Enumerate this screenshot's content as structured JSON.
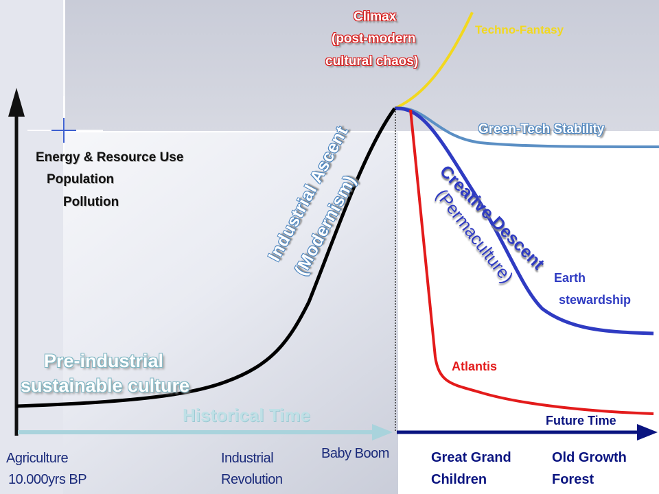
{
  "colors": {
    "industrial_curve": "#000000",
    "techno_fantasy": "#f2d81f",
    "green_tech": "#5b8fc4",
    "creative_descent": "#2f3bc2",
    "atlantis": "#e31b1b",
    "historical_axis": "#a9d3dc",
    "future_axis": "#0a1480"
  },
  "y_axis_labels": [
    "Energy & Resource Use",
    "Population",
    "Pollution"
  ],
  "phase_labels": {
    "climax": [
      "Climax",
      "(post-modern",
      "cultural chaos)"
    ],
    "industrial_ascent": "Industrial  Ascent",
    "modernism": "(Modernism)",
    "pre_industrial": [
      "Pre-industrial",
      "sustainable culture"
    ]
  },
  "scenario_labels": {
    "techno_fantasy": "Techno-Fantasy",
    "green_tech": "Green-Tech Stability",
    "creative_descent": "Creative Descent",
    "permaculture": "(Permaculture)",
    "earth_stewardship": [
      "Earth",
      "stewardship"
    ],
    "atlantis": "Atlantis"
  },
  "time_axes": {
    "historical": "Historical Time",
    "future": "Future Time"
  },
  "timeline_labels": {
    "agriculture": [
      "Agriculture",
      "10.000yrs BP"
    ],
    "industrial_revolution": [
      "Industrial",
      "Revolution"
    ],
    "baby_boom": "Baby Boom",
    "great_grand_children": [
      "Great Grand",
      "Children"
    ],
    "old_growth_forest": [
      "Old Growth",
      "Forest"
    ]
  }
}
